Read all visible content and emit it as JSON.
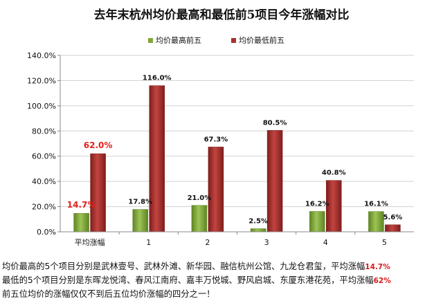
{
  "chart_data": {
    "type": "bar",
    "title": "去年末杭州均价最高和最低前5项目今年涨幅对比",
    "categories": [
      "平均涨幅",
      "1",
      "2",
      "3",
      "4",
      "5"
    ],
    "series": [
      {
        "name": "均价最高前五",
        "color": "#7fa736",
        "values": [
          14.7,
          17.8,
          21.0,
          2.5,
          16.2,
          16.1
        ],
        "labels": [
          "14.7%",
          "17.8%",
          "21.0%",
          "2.5%",
          "16.2%",
          "16.1%"
        ]
      },
      {
        "name": "均价最低前五",
        "color": "#a8312f",
        "values": [
          62.0,
          116.0,
          67.3,
          80.5,
          40.8,
          5.6
        ],
        "labels": [
          "62.0%",
          "116.0%",
          "67.3%",
          "80.5%",
          "40.8%",
          "5.6%"
        ]
      }
    ],
    "highlight_color": "#e3211c",
    "ylim": [
      0,
      140
    ],
    "yticks": [
      0,
      20,
      40,
      60,
      80,
      100,
      120,
      140
    ],
    "ytick_labels": [
      "0.0%",
      "20.0%",
      "40.0%",
      "60.0%",
      "80.0%",
      "100.0%",
      "120.0%",
      "140.0%"
    ],
    "grid": true,
    "legend": "top-center"
  },
  "caption": {
    "line1": "均价最高的5个项目分别是武林壹号、武林外滩、新华园、融信杭州公馆、九龙仓君玺，平均涨幅",
    "line1_value": "14.7%",
    "line2": "最低的5个项目分别是东晖龙悦湾、春风江南府、嘉丰万悦城、野风启城、东厦东港花苑，平均涨幅",
    "line2_value": "62%",
    "line3": "前五位均价的涨幅仅仅不到后五位均价涨幅的四分之一！"
  }
}
